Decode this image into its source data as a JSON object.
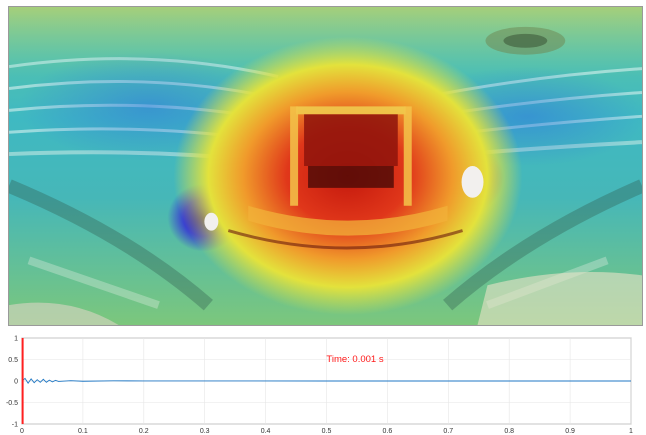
{
  "panorama": {
    "scene": "opera-house-360-interior",
    "overlay": "acoustic-intensity-heatmap",
    "colormap": [
      "#3b18b8",
      "#2f7fe8",
      "#3ec9c4",
      "#7fd66a",
      "#e7e43a",
      "#f39a2a",
      "#e02a16"
    ]
  },
  "timeline": {
    "time_label": "Time: 0.001 s",
    "cursor_time": 0.001,
    "colors": {
      "cursor": "#ff2020",
      "signal": "#1f77c4",
      "label": "#ff1a1a",
      "grid": "#e6e6e6"
    }
  },
  "chart_data": {
    "type": "line",
    "xlim": [
      0,
      1
    ],
    "ylim": [
      -1,
      1
    ],
    "x_ticks": [
      "0",
      "0.1",
      "0.2",
      "0.3",
      "0.4",
      "0.5",
      "0.6",
      "0.7",
      "0.8",
      "0.9",
      "1"
    ],
    "y_ticks": [
      "1",
      "0.5",
      "0",
      "-0.5",
      "-1"
    ],
    "grid": true,
    "series": [
      {
        "values_note_free": true,
        "x": [
          0.0,
          0.005,
          0.01,
          0.015,
          0.02,
          0.025,
          0.03,
          0.035,
          0.04,
          0.045,
          0.05,
          0.055,
          0.06,
          0.08,
          0.1,
          0.15,
          0.2,
          0.3,
          0.5,
          1.0
        ],
        "y": [
          0.0,
          0.06,
          -0.05,
          0.05,
          -0.04,
          0.03,
          -0.03,
          0.04,
          -0.03,
          0.02,
          -0.02,
          0.015,
          -0.01,
          0.008,
          -0.006,
          0.004,
          0.002,
          0.001,
          0.0,
          0.0
        ]
      }
    ]
  }
}
